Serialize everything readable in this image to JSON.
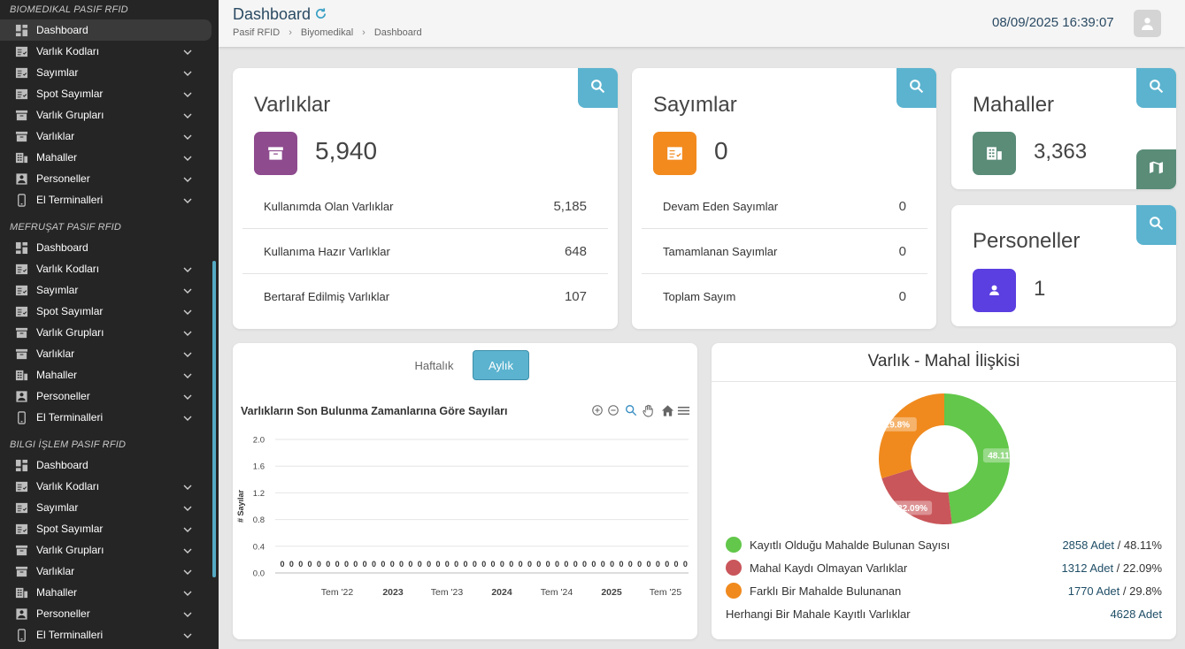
{
  "sidebar": {
    "sections": [
      {
        "title": "BIOMEDIKAL PASIF RFID",
        "items": [
          {
            "label": "Dashboard",
            "icon": "dashboard-icon",
            "chevron": false,
            "active": true
          },
          {
            "label": "Varlık Kodları",
            "icon": "checklist-icon",
            "chevron": true
          },
          {
            "label": "Sayımlar",
            "icon": "checklist-icon",
            "chevron": true
          },
          {
            "label": "Spot Sayımlar",
            "icon": "checklist-icon",
            "chevron": true
          },
          {
            "label": "Varlık Grupları",
            "icon": "archive-icon",
            "chevron": true
          },
          {
            "label": "Varlıklar",
            "icon": "archive-icon",
            "chevron": true
          },
          {
            "label": "Mahaller",
            "icon": "building-icon",
            "chevron": true
          },
          {
            "label": "Personeller",
            "icon": "person-icon",
            "chevron": true
          },
          {
            "label": "El Terminalleri",
            "icon": "mobile-icon",
            "chevron": true
          }
        ]
      },
      {
        "title": "MEFRUŞAT PASIF RFID",
        "items": [
          {
            "label": "Dashboard",
            "icon": "dashboard-icon",
            "chevron": false
          },
          {
            "label": "Varlık Kodları",
            "icon": "checklist-icon",
            "chevron": true
          },
          {
            "label": "Sayımlar",
            "icon": "checklist-icon",
            "chevron": true
          },
          {
            "label": "Spot Sayımlar",
            "icon": "checklist-icon",
            "chevron": true
          },
          {
            "label": "Varlık Grupları",
            "icon": "archive-icon",
            "chevron": true
          },
          {
            "label": "Varlıklar",
            "icon": "archive-icon",
            "chevron": true
          },
          {
            "label": "Mahaller",
            "icon": "building-icon",
            "chevron": true
          },
          {
            "label": "Personeller",
            "icon": "person-icon",
            "chevron": true
          },
          {
            "label": "El Terminalleri",
            "icon": "mobile-icon",
            "chevron": true
          }
        ]
      },
      {
        "title": "BILGI İŞLEM PASIF RFID",
        "items": [
          {
            "label": "Dashboard",
            "icon": "dashboard-icon",
            "chevron": false
          },
          {
            "label": "Varlık Kodları",
            "icon": "checklist-icon",
            "chevron": true
          },
          {
            "label": "Sayımlar",
            "icon": "checklist-icon",
            "chevron": true
          },
          {
            "label": "Spot Sayımlar",
            "icon": "checklist-icon",
            "chevron": true
          },
          {
            "label": "Varlık Grupları",
            "icon": "archive-icon",
            "chevron": true
          },
          {
            "label": "Varlıklar",
            "icon": "archive-icon",
            "chevron": true
          },
          {
            "label": "Mahaller",
            "icon": "building-icon",
            "chevron": true
          },
          {
            "label": "Personeller",
            "icon": "person-icon",
            "chevron": true
          },
          {
            "label": "El Terminalleri",
            "icon": "mobile-icon",
            "chevron": true
          }
        ]
      }
    ]
  },
  "header": {
    "title": "Dashboard",
    "breadcrumb": [
      "Pasif RFID",
      "Biyomedikal",
      "Dashboard"
    ],
    "datetime": "08/09/2025 16:39:07"
  },
  "cards": {
    "varliklar": {
      "title": "Varlıklar",
      "value": "5,940",
      "icon_color": "#8e4b8e",
      "rows": [
        {
          "label": "Kullanımda Olan Varlıklar",
          "value": "5,185"
        },
        {
          "label": "Kullanıma Hazır Varlıklar",
          "value": "648"
        },
        {
          "label": "Bertaraf Edilmiş Varlıklar",
          "value": "107"
        }
      ]
    },
    "sayimlar": {
      "title": "Sayımlar",
      "value": "0",
      "icon_color": "#f28a1e",
      "rows": [
        {
          "label": "Devam Eden Sayımlar",
          "value": "0"
        },
        {
          "label": "Tamamlanan Sayımlar",
          "value": "0"
        },
        {
          "label": "Toplam Sayım",
          "value": "0"
        }
      ]
    },
    "mahaller": {
      "title": "Mahaller",
      "value": "3,363",
      "icon_color": "#5a8c78"
    },
    "personeller": {
      "title": "Personeller",
      "value": "1",
      "icon_color": "#5b3fe0"
    }
  },
  "chart_panel": {
    "tabs": [
      "Haftalık",
      "Aylık"
    ],
    "active_tab": "Aylık"
  },
  "chart_data": {
    "type": "bar",
    "title": "Varlıkların Son Bulunma Zamanlarına Göre Sayıları",
    "xlabel": "",
    "ylabel": "# Sayılar",
    "ylim": [
      0,
      2
    ],
    "yticks": [
      "0.0",
      "0.4",
      "0.8",
      "1.2",
      "1.6",
      "2.0"
    ],
    "xticks": [
      {
        "label": "Tem '22",
        "bold": false
      },
      {
        "label": "2023",
        "bold": true
      },
      {
        "label": "Tem '23",
        "bold": false
      },
      {
        "label": "2024",
        "bold": true
      },
      {
        "label": "Tem '24",
        "bold": false
      },
      {
        "label": "2025",
        "bold": true
      },
      {
        "label": "Tem '25",
        "bold": false
      }
    ],
    "values": [
      0,
      0,
      0,
      0,
      0,
      0,
      0,
      0,
      0,
      0,
      0,
      0,
      0,
      0,
      0,
      0,
      0,
      0,
      0,
      0,
      0,
      0,
      0,
      0,
      0,
      0,
      0,
      0,
      0,
      0,
      0,
      0,
      0,
      0,
      0,
      0,
      0,
      0,
      0,
      0,
      0,
      0,
      0,
      0,
      0,
      0,
      0,
      0,
      0,
      0,
      0,
      0,
      0,
      0,
      0,
      0,
      0,
      0,
      0,
      0,
      0,
      0,
      0,
      0,
      0,
      0,
      0,
      0,
      0,
      0,
      0,
      0,
      0,
      0,
      0,
      0,
      0,
      0,
      0,
      0,
      0,
      0,
      0,
      0,
      0,
      0,
      0,
      0,
      0,
      0,
      0,
      0,
      0,
      0,
      0,
      0,
      0,
      0,
      0,
      0,
      0,
      0,
      0,
      0,
      0,
      0,
      0,
      0,
      0,
      0,
      0,
      0,
      0,
      0,
      0,
      0,
      0,
      0,
      0,
      0,
      0,
      0,
      0,
      0,
      0,
      0,
      0,
      0,
      0,
      0,
      0,
      0,
      0,
      0,
      0,
      0,
      0,
      0,
      0,
      0,
      0,
      0,
      0,
      0,
      0,
      0,
      0,
      0,
      0,
      0,
      0,
      0,
      0,
      0,
      0,
      0,
      0,
      0,
      0,
      0,
      0,
      0,
      0,
      0,
      0,
      0,
      0,
      0,
      0,
      0,
      0,
      0,
      0,
      0,
      0,
      0,
      0,
      0,
      0,
      0,
      0,
      0,
      0,
      0,
      0,
      0,
      0,
      0,
      0,
      0,
      0,
      0,
      0,
      0,
      0,
      0,
      0,
      0,
      0
    ],
    "color": "#3a8fc4"
  },
  "pie": {
    "title": "Varlık - Mahal İlişkisi",
    "chart_data": {
      "type": "pie",
      "slices": [
        {
          "label": "Kayıtlı Olduğu Mahalde Bulunan Sayısı",
          "value": 2858,
          "pct_label": "48.11%",
          "color": "#62c74a",
          "value_text": "2858 Adet",
          "pct_text": "48.11%"
        },
        {
          "label": "Mahal Kaydı Olmayan Varlıklar",
          "value": 1312,
          "pct_label": "22.09%",
          "color": "#c9565a",
          "value_text": "1312 Adet",
          "pct_text": "22.09%"
        },
        {
          "label": "Farklı Bir Mahalde Bulunanan",
          "value": 1770,
          "pct_label": "29.8%",
          "color": "#f08a1e",
          "value_text": "1770 Adet",
          "pct_text": "29.8%"
        }
      ]
    },
    "footer": {
      "label": "Herhangi Bir Mahale Kayıtlı Varlıklar",
      "value": "4628 Adet"
    }
  }
}
